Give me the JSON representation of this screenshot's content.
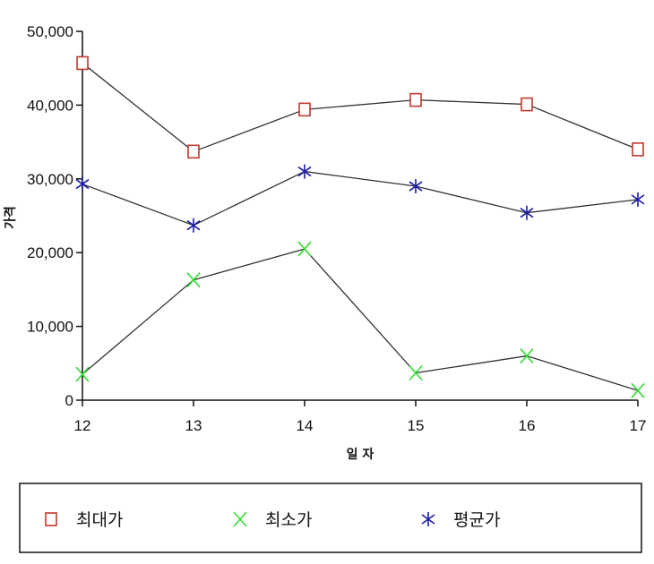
{
  "chart_data": {
    "type": "line",
    "xlabel": "일 자",
    "ylabel": "가격",
    "categories": [
      "12",
      "13",
      "14",
      "15",
      "16",
      "17"
    ],
    "yticks": [
      "0",
      "10,000",
      "20,000",
      "30,000",
      "40,000",
      "50,000"
    ],
    "ylim": [
      0,
      50000
    ],
    "grid": false,
    "legend_position": "bottom",
    "series": [
      {
        "name": "최대가",
        "marker": "square",
        "color": "#c0392b",
        "values": [
          45700,
          33700,
          39400,
          40700,
          40100,
          34000
        ]
      },
      {
        "name": "최소가",
        "marker": "x",
        "color": "#33dd33",
        "values": [
          3500,
          16300,
          20500,
          3700,
          6000,
          1300
        ]
      },
      {
        "name": "평균가",
        "marker": "asterisk",
        "color": "#1a1aa8",
        "values": [
          29300,
          23700,
          31000,
          29000,
          25400,
          27200
        ]
      }
    ],
    "line_color": "#333333"
  }
}
